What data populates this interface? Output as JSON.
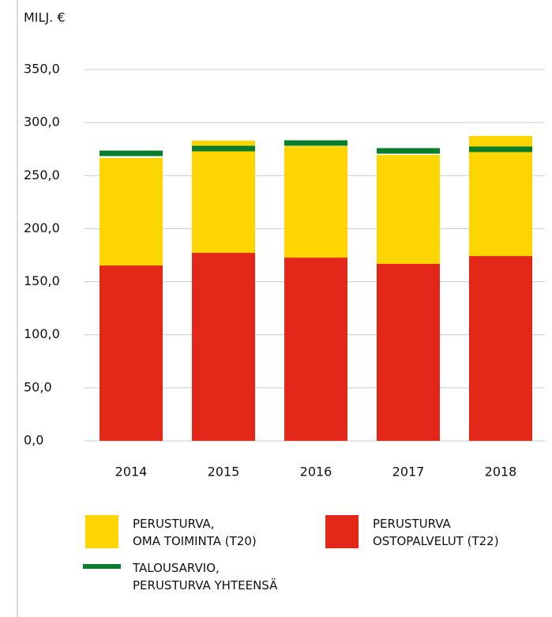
{
  "chart_data": {
    "type": "bar",
    "y_label": "MILJ. €",
    "categories": [
      "2014",
      "2015",
      "2016",
      "2017",
      "2018"
    ],
    "series": [
      {
        "name": "PERUSTURVA\nOSTOPALVELUT (T22)",
        "color": "#e32718",
        "values": [
          165.3,
          177.2,
          172.7,
          166.8,
          174.2
        ],
        "style": "stack"
      },
      {
        "name": "PERUSTURVA,\nOMA TOIMINTA (T20)",
        "color": "#ffd500",
        "values": [
          101.3,
          105.8,
          105.0,
          102.7,
          113.2
        ],
        "style": "stack"
      },
      {
        "name": "TALOUSARVIO,\nPERUSTURVA YHTEENSÄ",
        "color": "#0a7d2c",
        "values": [
          271.0,
          275.5,
          280.7,
          273.3,
          274.8
        ],
        "style": "dash"
      }
    ],
    "ylim": [
      0,
      350
    ],
    "yticks": [
      {
        "value": 0,
        "label": "0,0"
      },
      {
        "value": 50,
        "label": "50,0"
      },
      {
        "value": 100,
        "label": "100,0"
      },
      {
        "value": 150,
        "label": "150,0"
      },
      {
        "value": 200,
        "label": "200,0"
      },
      {
        "value": 250,
        "label": "250,0"
      },
      {
        "value": 300,
        "label": "300,0"
      },
      {
        "value": 350,
        "label": "350,0"
      }
    ],
    "grid": true
  }
}
